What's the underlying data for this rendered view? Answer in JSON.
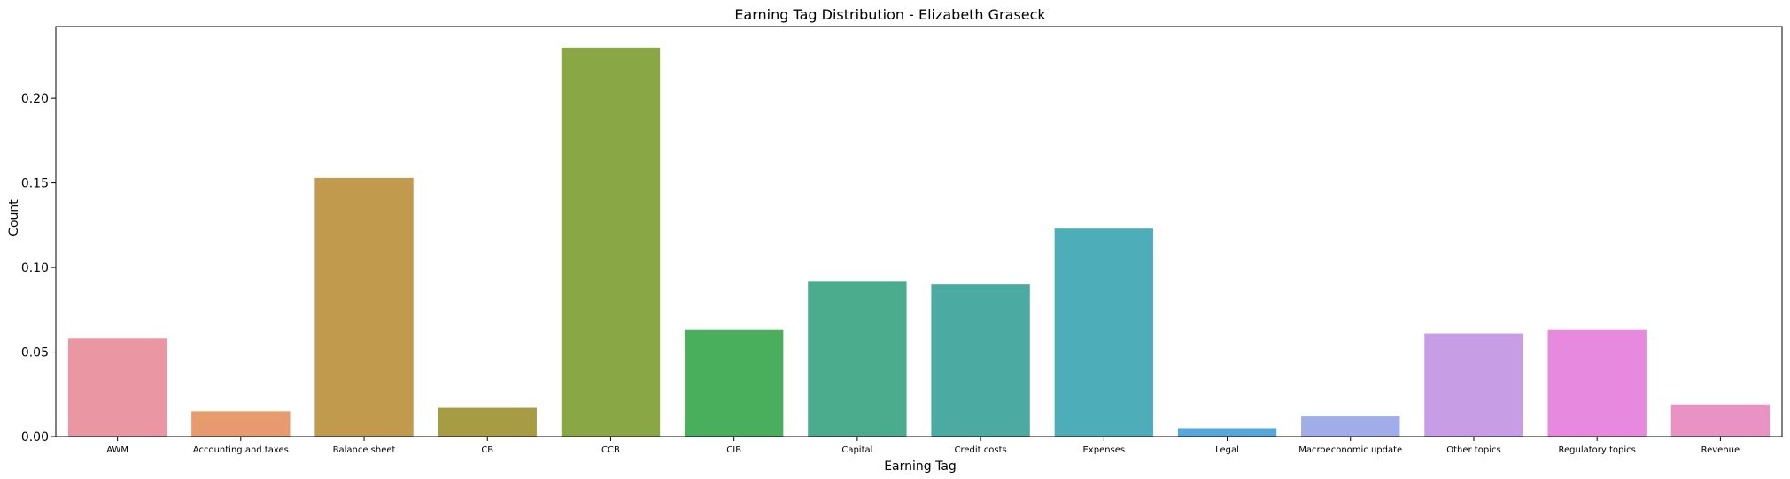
{
  "chart_data": {
    "type": "bar",
    "title": "Earning Tag Distribution - Elizabeth Graseck",
    "xlabel": "Earning Tag",
    "ylabel": "Count",
    "ylim": [
      0,
      0.2425
    ],
    "yticks": [
      "0.00",
      "0.05",
      "0.10",
      "0.15",
      "0.20"
    ],
    "grid": false,
    "categories": [
      "AWM",
      "Accounting and taxes",
      "Balance sheet",
      "CB",
      "CCB",
      "CIB",
      "Capital",
      "Credit costs",
      "Expenses",
      "Legal",
      "Macroeconomic update",
      "Other topics",
      "Regulatory topics",
      "Revenue"
    ],
    "values": [
      0.058,
      0.015,
      0.153,
      0.017,
      0.23,
      0.063,
      0.092,
      0.09,
      0.123,
      0.005,
      0.012,
      0.061,
      0.063,
      0.019
    ],
    "colors": [
      "#ea96a3",
      "#e69a6e",
      "#c19a4e",
      "#a59c44",
      "#89a845",
      "#4aaf5c",
      "#4aac8d",
      "#4baaa1",
      "#4daeba",
      "#55a7dc",
      "#a0ade8",
      "#c79de6",
      "#e78adf",
      "#e893c4"
    ]
  }
}
